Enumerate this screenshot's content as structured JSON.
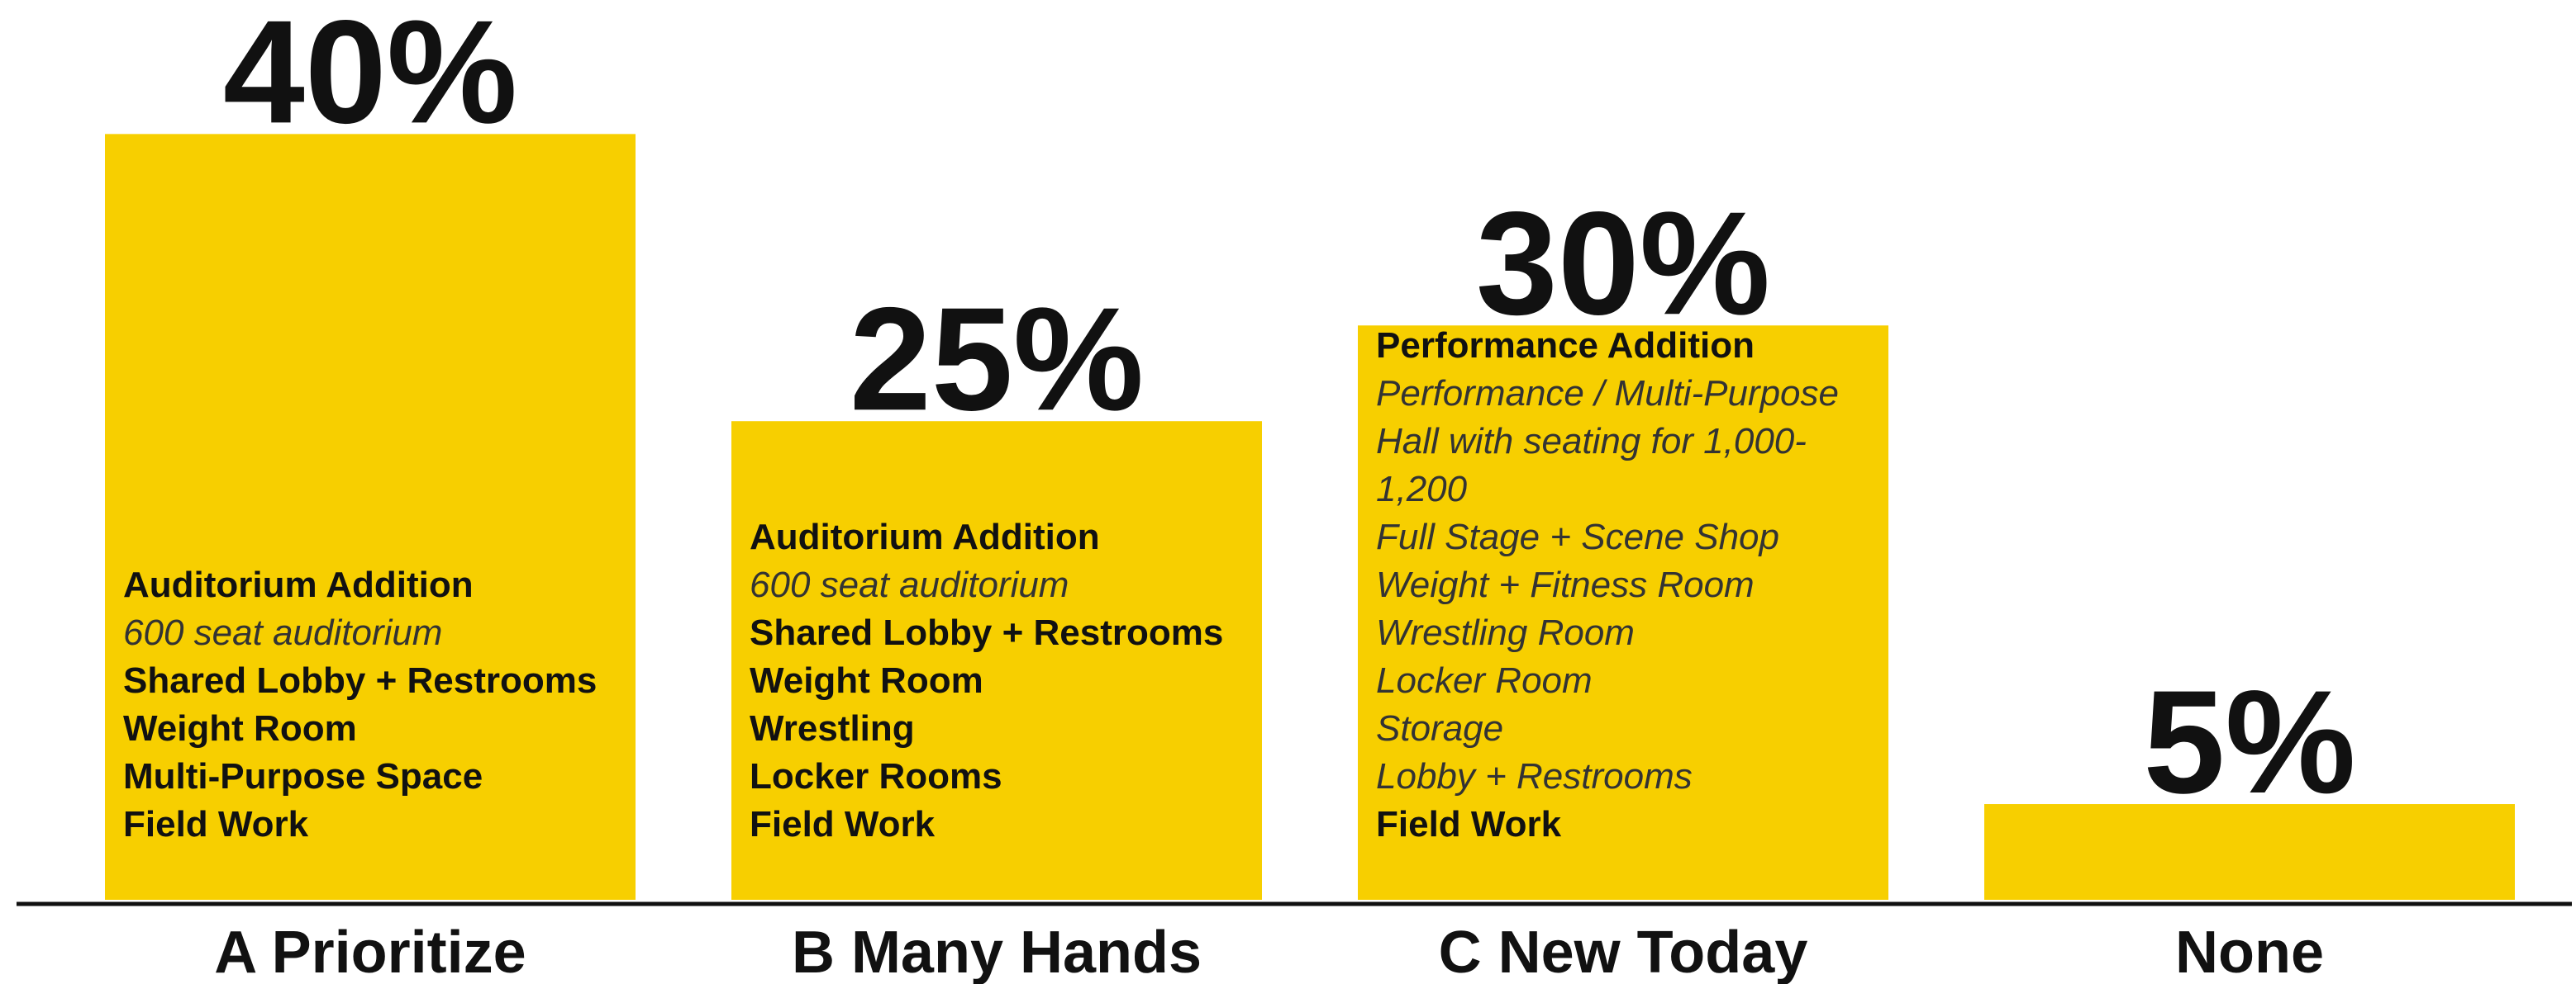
{
  "chart_data": {
    "type": "bar",
    "categories": [
      "A Prioritize",
      "B Many Hands",
      "C New Today",
      "None"
    ],
    "values": [
      40,
      25,
      30,
      5
    ],
    "value_labels": [
      "40%",
      "25%",
      "30%",
      "5%"
    ],
    "color": "#f7cf00",
    "ylim": [
      0,
      47
    ],
    "bar_notes": [
      [
        {
          "text": "Auditorium Addition",
          "style": "bold"
        },
        {
          "text": "600 seat auditorium",
          "style": "italic"
        },
        {
          "text": "Shared Lobby + Restrooms",
          "style": "bold"
        },
        {
          "text": "Weight Room",
          "style": "bold"
        },
        {
          "text": "Multi-Purpose Space",
          "style": "bold"
        },
        {
          "text": "Field Work",
          "style": "bold"
        }
      ],
      [
        {
          "text": "Auditorium Addition",
          "style": "bold"
        },
        {
          "text": "600 seat auditorium",
          "style": "italic"
        },
        {
          "text": "Shared Lobby + Restrooms",
          "style": "bold"
        },
        {
          "text": "Weight Room",
          "style": "bold"
        },
        {
          "text": "Wrestling",
          "style": "bold"
        },
        {
          "text": "Locker Rooms",
          "style": "bold"
        },
        {
          "text": "Field Work",
          "style": "bold"
        }
      ],
      [
        {
          "text": "Performance Addition",
          "style": "bold"
        },
        {
          "text": "Performance / Multi-Purpose",
          "style": "italic"
        },
        {
          "text": "Hall with seating for 1,000-",
          "style": "italic"
        },
        {
          "text": "1,200",
          "style": "italic"
        },
        {
          "text": "Full Stage + Scene Shop",
          "style": "italic"
        },
        {
          "text": "Weight + Fitness Room",
          "style": "italic"
        },
        {
          "text": "Wrestling Room",
          "style": "italic"
        },
        {
          "text": "Locker Room",
          "style": "italic"
        },
        {
          "text": "Storage",
          "style": "italic"
        },
        {
          "text": "Lobby + Restrooms",
          "style": "italic"
        },
        {
          "text": "Field Work",
          "style": "bold"
        }
      ],
      []
    ]
  }
}
